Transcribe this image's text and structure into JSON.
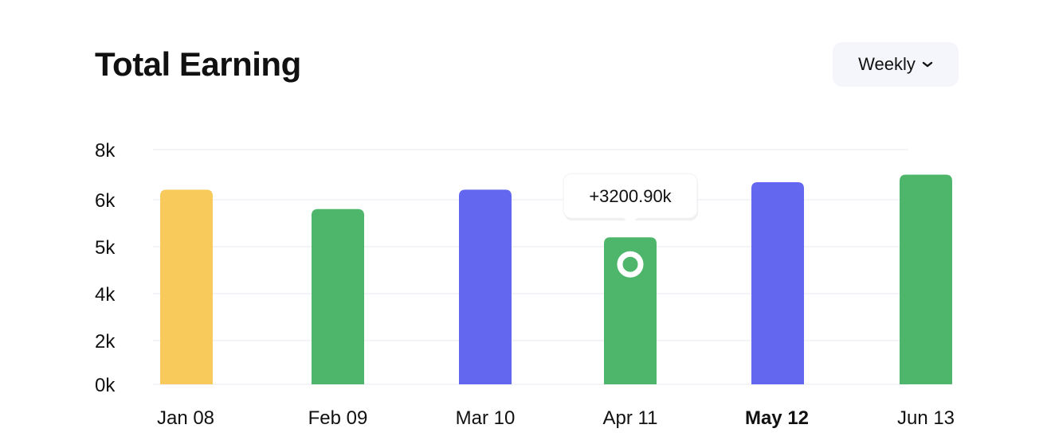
{
  "header": {
    "title": "Total Earning",
    "period_label": "Weekly"
  },
  "chart_data": {
    "type": "bar",
    "title": "Total Earning",
    "categories": [
      "Jan 08",
      "Feb 09",
      "Mar 10",
      "Apr 11",
      "May 12",
      "Jun 13"
    ],
    "values": [
      6400,
      5800,
      6400,
      5200,
      6700,
      7000
    ],
    "bar_colors": [
      "#f8ca5b",
      "#4db66b",
      "#6366ee",
      "#4db66b",
      "#6366ee",
      "#4db66b"
    ],
    "y_ticks": [
      {
        "value": 0,
        "label": "0k"
      },
      {
        "value": 2000,
        "label": "2k"
      },
      {
        "value": 4000,
        "label": "4k"
      },
      {
        "value": 5000,
        "label": "5k"
      },
      {
        "value": 6000,
        "label": "6k"
      },
      {
        "value": 8000,
        "label": "8k"
      }
    ],
    "ylim": [
      0,
      8000
    ],
    "grid": true,
    "highlighted_category": "Apr 11",
    "highlight_color": "#4db66b",
    "bold_category": "May 12",
    "tooltip": {
      "category": "Apr 11",
      "text": "+3200.90k"
    },
    "xlabel": "",
    "ylabel": ""
  }
}
